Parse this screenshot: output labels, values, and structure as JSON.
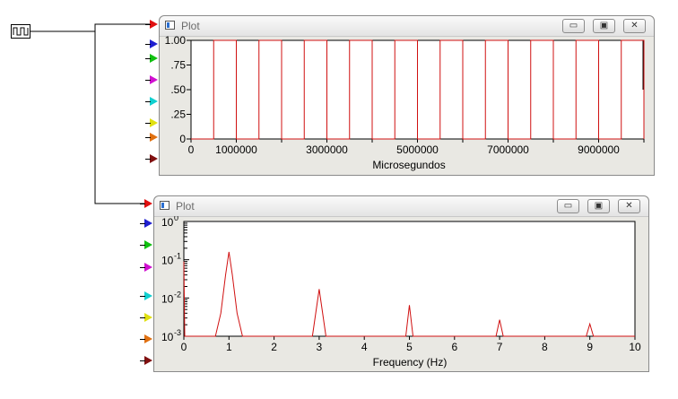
{
  "colors": {
    "trace": "#d01010",
    "ports": [
      "#1f1fd0",
      "#10c010",
      "#d010d0",
      "#10d0d0",
      "#e0e010",
      "#e07010",
      "#801010"
    ],
    "input_port": "#e01010"
  },
  "generator": {
    "icon": "square-wave-icon"
  },
  "window_controls": {
    "minimize": "▭",
    "maximize": "▣",
    "close": "✕"
  },
  "plot_top": {
    "title": "Plot",
    "xlabel": "Microsegundos",
    "x_ticks": [
      "0",
      "1000000",
      "3000000",
      "5000000",
      "7000000",
      "9000000"
    ],
    "y_ticks": [
      "0",
      ".25",
      ".50",
      ".75",
      "1.00"
    ]
  },
  "plot_bottom": {
    "title": "Plot",
    "xlabel": "Frequency (Hz)",
    "x_ticks": [
      "0",
      "1",
      "2",
      "3",
      "4",
      "5",
      "6",
      "7",
      "8",
      "9",
      "10"
    ],
    "y_tick_base": [
      "10",
      "10",
      "10",
      "10"
    ],
    "y_tick_exp": [
      "0",
      "-1",
      "-2",
      "-3"
    ]
  },
  "chart_data": [
    {
      "type": "line",
      "xlabel": "Microsegundos",
      "x_range": [
        0,
        10000000
      ],
      "y_range": [
        0,
        1
      ],
      "series": [
        {
          "points_description": "square wave, period 1000000, 50% duty",
          "transitions": [
            500000,
            1000000,
            1500000,
            2000000,
            2500000,
            3000000,
            3500000,
            4000000,
            4500000,
            5000000,
            5500000,
            6000000,
            6500000,
            7000000,
            7500000,
            8000000,
            8500000,
            9000000,
            9500000,
            10000000
          ],
          "low": 0,
          "high": 1
        }
      ]
    },
    {
      "type": "line",
      "xlabel": "Frequency (Hz)",
      "x_range": [
        0,
        10
      ],
      "y_range": [
        0.001,
        1
      ],
      "y_scale": "log",
      "series": [
        {
          "peaks": [
            {
              "x": 0,
              "y": 0.09
            },
            {
              "x": 1,
              "y": 0.16
            },
            {
              "x": 3,
              "y": 0.017
            },
            {
              "x": 5,
              "y": 0.0065
            },
            {
              "x": 7,
              "y": 0.0027
            },
            {
              "x": 9,
              "y": 0.0021
            }
          ]
        }
      ]
    }
  ]
}
